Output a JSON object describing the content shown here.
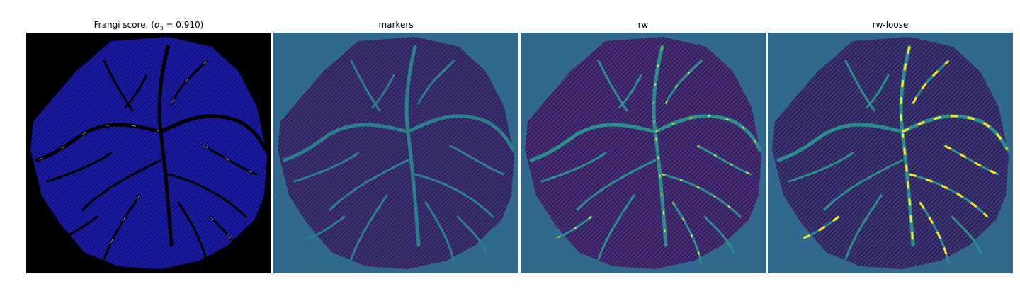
{
  "panels": [
    {
      "title_main": "Frangi score, (",
      "title_sigma": "σ",
      "title_sub": "3",
      "title_rest": " = 0.910)",
      "background": "#000000",
      "foreground": "#1a1a9e",
      "vessel": "#000000",
      "highlight": "#d9a0a0"
    },
    {
      "title": "markers",
      "background": "#31688e",
      "foreground": "#3b1e66",
      "vessel": "#2a7f8a",
      "highlight": "#21a58a"
    },
    {
      "title": "rw",
      "background": "#31688e",
      "foreground": "#3b1e66",
      "vessel": "#2a8f8a",
      "highlight": "#fde725"
    },
    {
      "title": "rw-loose",
      "background": "#31688e",
      "foreground": "#3b1e66",
      "vessel": "#2a8f8a",
      "highlight": "#fde725"
    }
  ]
}
